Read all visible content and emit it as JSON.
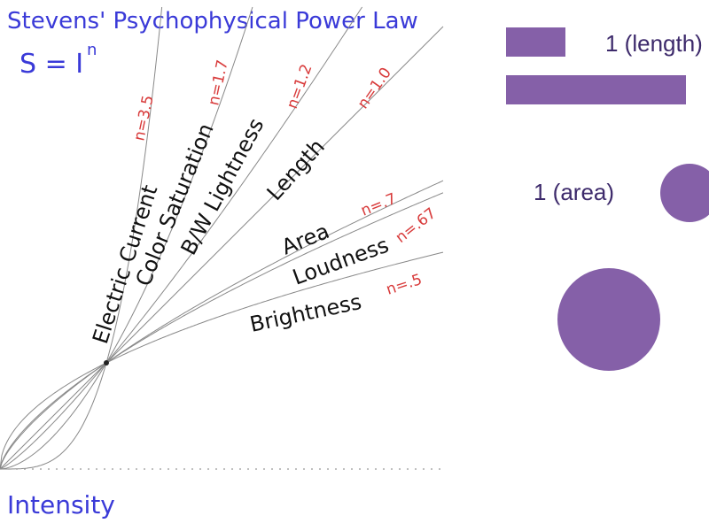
{
  "title": "Stevens' Psychophysical Power Law",
  "formula": {
    "lhs": "S = I",
    "exponent": "n"
  },
  "x_axis_label": "Intensity",
  "curves": [
    {
      "name": "Electric Current",
      "exponent_label": "n=3.5",
      "n": 3.5
    },
    {
      "name": "Color Saturation",
      "exponent_label": "n=1.7",
      "n": 1.7
    },
    {
      "name": "B/W Lightness",
      "exponent_label": "n=1.2",
      "n": 1.2
    },
    {
      "name": "Length",
      "exponent_label": "n=1.0",
      "n": 1.0
    },
    {
      "name": "Area",
      "exponent_label": "n=.7",
      "n": 0.7
    },
    {
      "name": "Loudness",
      "exponent_label": "n=.67",
      "n": 0.67
    },
    {
      "name": "Brightness",
      "exponent_label": "n=.5",
      "n": 0.5
    }
  ],
  "legend": {
    "length_label": "1 (length)",
    "area_label": "1 (area)"
  },
  "colors": {
    "title": "#3a3ad8",
    "curve_labels": "#111111",
    "exponent_labels": "#d83a3a",
    "shapes": "#8560a8",
    "legend_text": "#3d2a6b",
    "curves": "#888888"
  }
}
